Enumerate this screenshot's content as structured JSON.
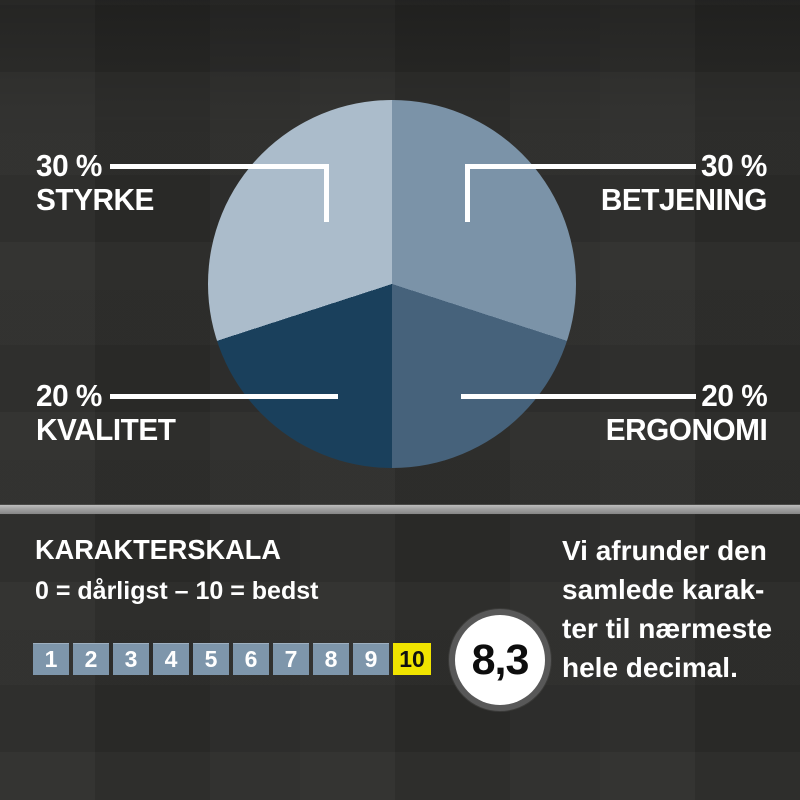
{
  "chart_data": {
    "type": "pie",
    "title": "",
    "labels": [
      "BETJENING",
      "ERGONOMI",
      "KVALITET",
      "STYRKE"
    ],
    "values": [
      30,
      20,
      20,
      30
    ],
    "colors": [
      "#7b93a8",
      "#46627b",
      "#1a405c",
      "#abbccb"
    ],
    "start_angle_deg": 0,
    "direction": "clockwise",
    "legend_position": "callout-labels"
  },
  "callouts": {
    "styrke": {
      "percent": "30 %",
      "name": "STYRKE"
    },
    "betjening": {
      "percent": "30 %",
      "name": "BETJENING"
    },
    "kvalitet": {
      "percent": "20 %",
      "name": "KVALITET"
    },
    "ergonomi": {
      "percent": "20 %",
      "name": "ERGONOMI"
    }
  },
  "scale": {
    "title": "KARAKTERSKALA",
    "subtitle": "0 = dårligst – 10 = bedst",
    "numbers": [
      "1",
      "2",
      "3",
      "4",
      "5",
      "6",
      "7",
      "8",
      "9",
      "10"
    ],
    "highlighted": "10",
    "rating": "8,3",
    "note_lines": {
      "0": "Vi afrunder den",
      "1": "samlede karak-",
      "2": "ter til nærmeste",
      "3": "hele decimal."
    }
  },
  "colors": {
    "background": "#2d2d2b",
    "callout_line": "#ffffff",
    "label_text": "#ffffff",
    "divider": "#a6a6a6",
    "scale_box": "#7e96ab",
    "scale_box_highlight": "#f0e400",
    "rating_ring": "#585858",
    "rating_fill": "#ffffff",
    "rating_text": "#0d0d0d"
  }
}
